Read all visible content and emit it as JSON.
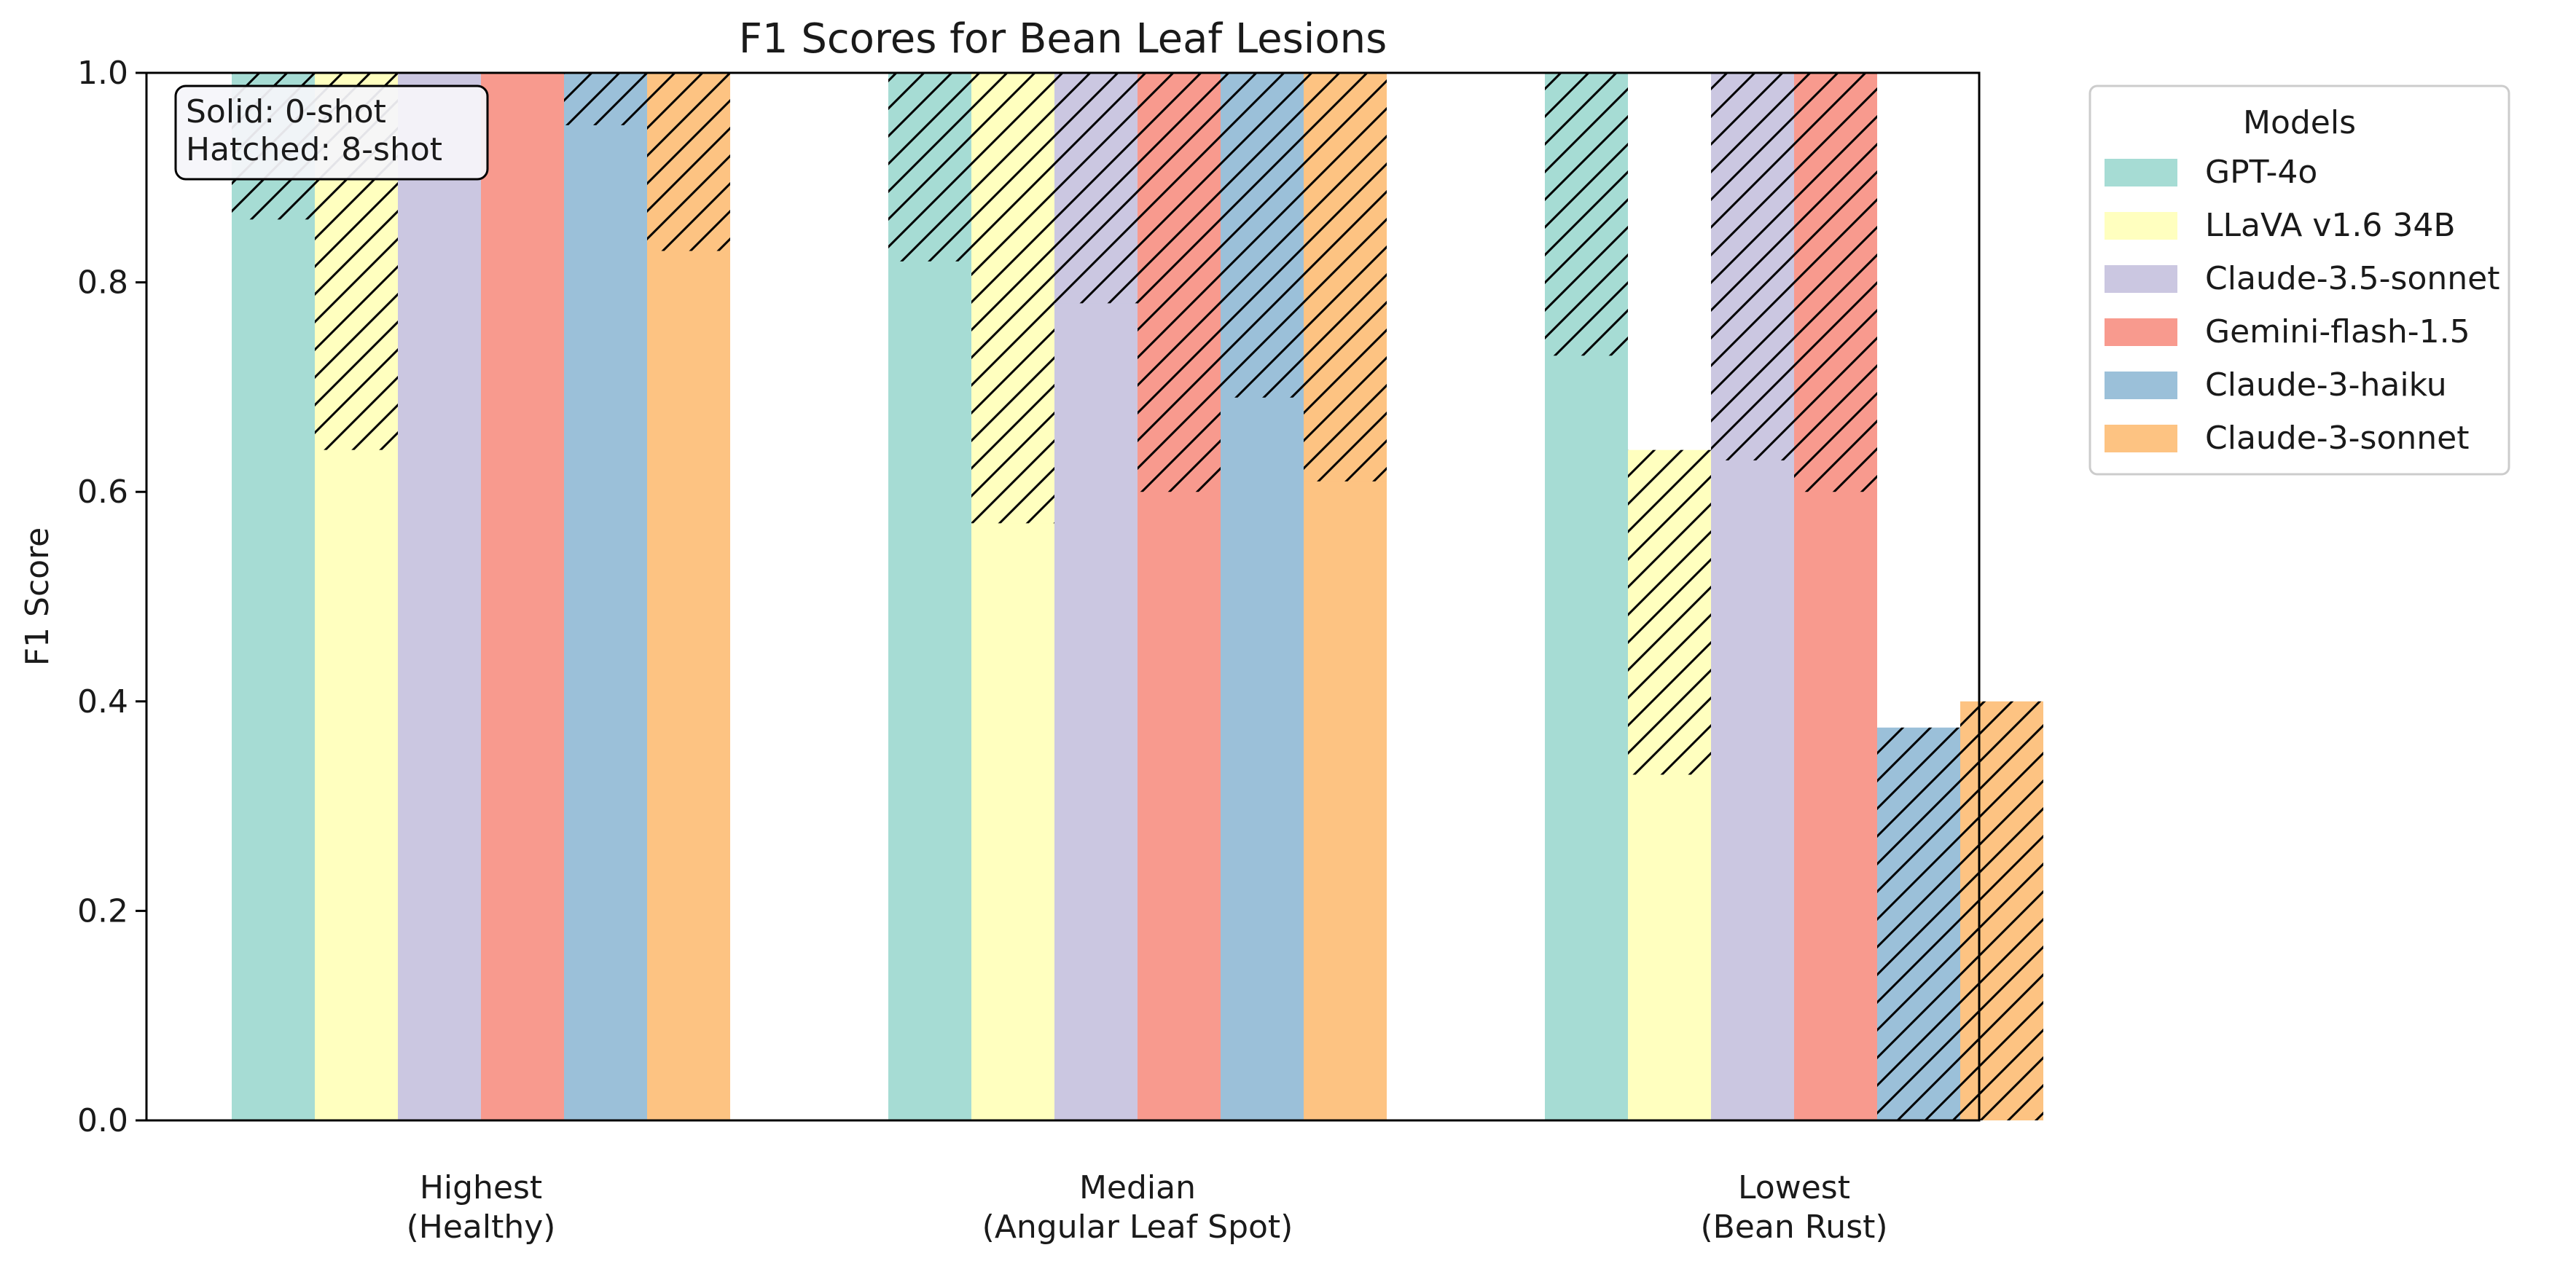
{
  "chart_data": {
    "type": "bar",
    "title": "F1 Scores for Bean Leaf Lesions",
    "xlabel": "",
    "ylabel": "F1 Score",
    "ylim": [
      0,
      1.0
    ],
    "yticks": [
      "0.0",
      "0.2",
      "0.4",
      "0.6",
      "0.8",
      "1.0"
    ],
    "categories": [
      [
        "Highest",
        "(Healthy)"
      ],
      [
        "Median",
        "(Angular Leaf Spot)"
      ],
      [
        "Lowest",
        "(Bean Rust)"
      ]
    ],
    "legend": {
      "title": "Models",
      "placement": "outside-top-right"
    },
    "annotation": [
      "Solid: 0-shot",
      "Hatched: 8-shot"
    ],
    "series": [
      {
        "name": "GPT-4o",
        "color": "#a6dcd4",
        "zero_shot": [
          0.86,
          0.82,
          0.73
        ],
        "eight_shot": [
          1.0,
          1.0,
          1.0
        ]
      },
      {
        "name": "LLaVA v1.6 34B",
        "color": "#ffffbf",
        "zero_shot": [
          0.64,
          0.57,
          0.33
        ],
        "eight_shot": [
          1.0,
          1.0,
          0.64
        ]
      },
      {
        "name": "Claude-3.5-sonnet",
        "color": "#cbc7e1",
        "zero_shot": [
          1.0,
          0.78,
          0.63
        ],
        "eight_shot": [
          1.0,
          1.0,
          1.0
        ]
      },
      {
        "name": "Gemini-flash-1.5",
        "color": "#f89a8e",
        "zero_shot": [
          1.0,
          0.6,
          0.6
        ],
        "eight_shot": [
          1.0,
          1.0,
          1.0
        ]
      },
      {
        "name": "Claude-3-haiku",
        "color": "#9bc0d9",
        "zero_shot": [
          0.95,
          0.69,
          0.0
        ],
        "eight_shot": [
          1.0,
          1.0,
          0.375
        ]
      },
      {
        "name": "Claude-3-sonnet",
        "color": "#fdc382",
        "zero_shot": [
          0.83,
          0.61,
          0.0
        ],
        "eight_shot": [
          1.0,
          1.0,
          0.4
        ]
      }
    ]
  }
}
